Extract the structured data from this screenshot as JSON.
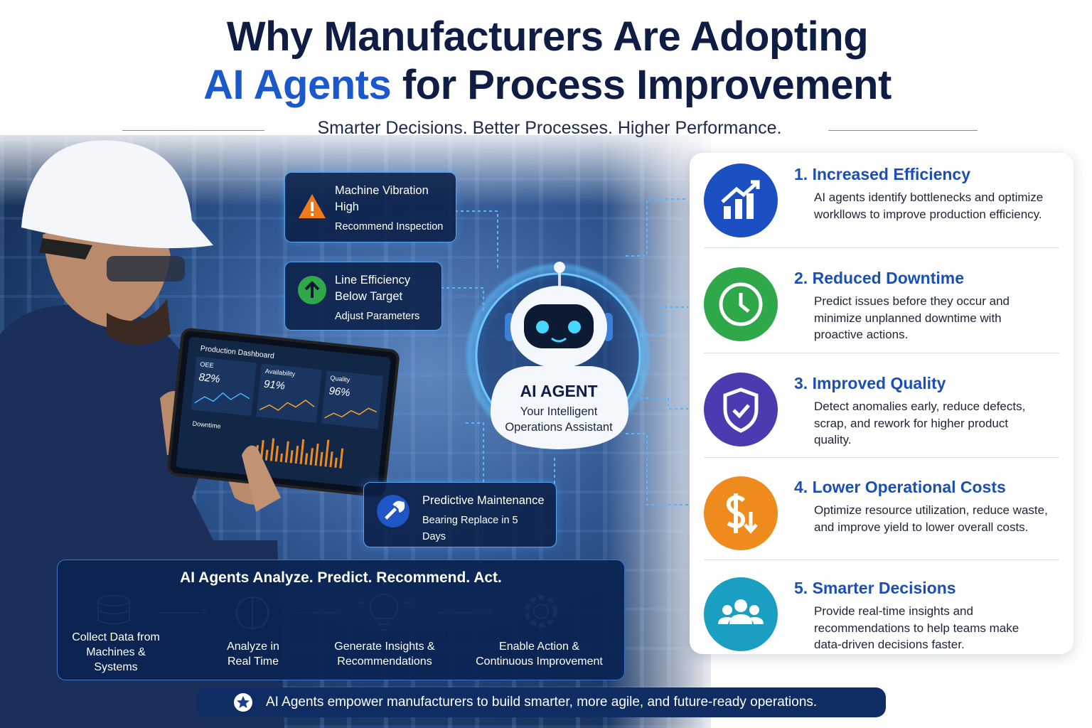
{
  "header": {
    "title_line1": "Why Manufacturers Are Adopting",
    "title_highlight": "AI Agents",
    "title_line2_rest": "for Process Improvement",
    "subtitle": "Smarter Decisions. Better Processes. Higher Performance."
  },
  "alerts": [
    {
      "title": "Machine Vibration High",
      "detail": "Recommend Inspection"
    },
    {
      "title": "Line Efficiency Below Target",
      "detail": "Adjust Parameters"
    },
    {
      "title": "Predictive Maintenance",
      "detail": "Bearing Replace in 5 Days"
    }
  ],
  "dashboard": {
    "title": "Production Dashboard",
    "metrics": [
      {
        "label": "OEE",
        "value": "82%"
      },
      {
        "label": "Availability",
        "value": "91%"
      },
      {
        "label": "Quality",
        "value": "96%"
      }
    ],
    "downtime_label": "Downtime"
  },
  "agent": {
    "name": "AI AGENT",
    "tagline": "Your Intelligent Operations Assistant"
  },
  "benefits": [
    {
      "number": "1.",
      "title": "Increased Efficiency",
      "description": "AI agents identify bottlenecks and optimize workllows to improve production efficiency."
    },
    {
      "number": "2.",
      "title": "Reduced Downtime",
      "description": "Predict issues before they occur and minimize unplanned downtime with proactive actions."
    },
    {
      "number": "3.",
      "title": "Improved Quality",
      "description": "Detect anomalies early, reduce defects, scrap, and rework for higher product quality."
    },
    {
      "number": "4.",
      "title": "Lower Operational Costs",
      "description": "Optimize resource utilization, reduce waste, and improve yield to lower overall costs."
    },
    {
      "number": "5.",
      "title": "Smarter Decisions",
      "description": "Provide real-time insights and recommendations to help teams make data-driven decisions faster."
    }
  ],
  "process": {
    "heading": "AI Agents Analyze. Predict. Recommend. Act.",
    "steps": [
      "Collect Data from Machines & Systems",
      "Analyze in Real Time",
      "Generate Insights & Recommendations",
      "Enable Action & Continuous Improvement"
    ]
  },
  "footer": {
    "text": "AI Agents empower manufacturers to build smarter, more agile, and future-ready operations."
  }
}
